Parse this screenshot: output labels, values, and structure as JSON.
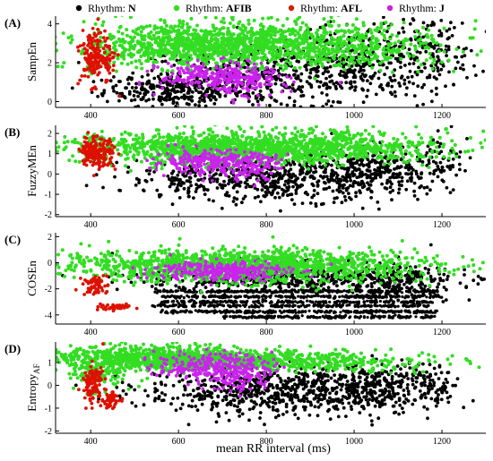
{
  "legend": [
    {
      "prefix": "Rhythm: ",
      "code": "N",
      "color": "#000000"
    },
    {
      "prefix": "Rhythm: ",
      "code": "AFIB",
      "color": "#33dd22"
    },
    {
      "prefix": "Rhythm: ",
      "code": "AFL",
      "color": "#cc2200"
    },
    {
      "prefix": "Rhythm: ",
      "code": "J",
      "color": "#cc22dd"
    }
  ],
  "xlabel": "mean RR interval (ms)",
  "colors": {
    "N": "#000000",
    "AFIB": "#33dd22",
    "AFL": "#dd1100",
    "J": "#cc22ee",
    "cyan_fringe": "#66ffee"
  },
  "chart_data": [
    {
      "type": "scatter",
      "tag": "(A)",
      "ylabel": "SampEn",
      "xlim": [
        320,
        1300
      ],
      "ylim": [
        -0.3,
        4.4
      ],
      "xticks": [
        400,
        600,
        800,
        1000,
        1200
      ],
      "yticks": [
        0,
        2,
        4
      ],
      "series": [
        {
          "name": "N",
          "clusters": [
            {
              "cx": 590,
              "cy": 0.6,
              "sx": 80,
              "sy": 0.4,
              "n": 260
            },
            {
              "cx": 800,
              "cy": 1.2,
              "sx": 150,
              "sy": 0.8,
              "n": 420
            },
            {
              "cx": 1000,
              "cy": 2.2,
              "sx": 80,
              "sy": 1.0,
              "n": 260
            },
            {
              "cx": 1170,
              "cy": 2.4,
              "sx": 50,
              "sy": 1.0,
              "n": 120
            },
            {
              "cx": 1240,
              "cy": 2.3,
              "sx": 30,
              "sy": 0.9,
              "n": 18
            }
          ]
        },
        {
          "name": "AFIB",
          "clusters": [
            {
              "cx": 640,
              "cy": 2.9,
              "sx": 150,
              "sy": 0.55,
              "n": 900
            },
            {
              "cx": 900,
              "cy": 2.9,
              "sx": 160,
              "sy": 0.6,
              "n": 700
            }
          ]
        },
        {
          "name": "AFL",
          "clusters": [
            {
              "cx": 405,
              "cy": 2.3,
              "sx": 14,
              "sy": 0.7,
              "n": 140
            },
            {
              "cx": 440,
              "cy": 2.1,
              "sx": 10,
              "sy": 0.6,
              "n": 40
            }
          ]
        },
        {
          "name": "J",
          "clusters": [
            {
              "cx": 690,
              "cy": 1.3,
              "sx": 65,
              "sy": 0.35,
              "n": 260
            },
            {
              "cx": 760,
              "cy": 0.8,
              "sx": 40,
              "sy": 0.4,
              "n": 60
            }
          ]
        }
      ]
    },
    {
      "type": "scatter",
      "tag": "(B)",
      "ylabel": "FuzzyMEn",
      "xlim": [
        320,
        1300
      ],
      "ylim": [
        -2.1,
        2.4
      ],
      "xticks": [
        400,
        600,
        800,
        1000,
        1200
      ],
      "yticks": [
        -2,
        -1,
        0,
        1,
        2
      ],
      "series": [
        {
          "name": "N",
          "clusters": [
            {
              "cx": 800,
              "cy": -0.2,
              "sx": 160,
              "sy": 0.55,
              "n": 600
            },
            {
              "cx": 1050,
              "cy": 0.3,
              "sx": 90,
              "sy": 0.6,
              "n": 260
            },
            {
              "cx": 1210,
              "cy": 0.7,
              "sx": 35,
              "sy": 0.6,
              "n": 40
            }
          ]
        },
        {
          "name": "AFIB",
          "clusters": [
            {
              "cx": 660,
              "cy": 1.3,
              "sx": 160,
              "sy": 0.38,
              "n": 900
            },
            {
              "cx": 920,
              "cy": 1.3,
              "sx": 150,
              "sy": 0.38,
              "n": 650
            }
          ]
        },
        {
          "name": "AFL",
          "clusters": [
            {
              "cx": 405,
              "cy": 1.1,
              "sx": 13,
              "sy": 0.4,
              "n": 140
            },
            {
              "cx": 440,
              "cy": 1.1,
              "sx": 10,
              "sy": 0.4,
              "n": 40
            }
          ]
        },
        {
          "name": "J",
          "clusters": [
            {
              "cx": 680,
              "cy": 0.6,
              "sx": 70,
              "sy": 0.28,
              "n": 280
            },
            {
              "cx": 760,
              "cy": 0.2,
              "sx": 35,
              "sy": 0.3,
              "n": 50
            }
          ]
        }
      ]
    },
    {
      "type": "scatter",
      "tag": "(C)",
      "ylabel": "COSEn",
      "xlim": [
        320,
        1300
      ],
      "ylim": [
        -4.7,
        2.3
      ],
      "xticks": [
        400,
        600,
        800,
        1000,
        1200
      ],
      "yticks": [
        -4,
        -2,
        0,
        2
      ],
      "series": [
        {
          "name": "N",
          "clusters": [
            {
              "cx": 850,
              "cy": -1.2,
              "sx": 170,
              "sy": 0.6,
              "n": 500
            },
            {
              "cx": 1100,
              "cy": -1.5,
              "sx": 70,
              "sy": 0.6,
              "n": 150
            }
          ],
          "bands": [
            {
              "x0": 540,
              "x1": 1190,
              "y": -2.2,
              "n": 260
            },
            {
              "x0": 560,
              "x1": 1200,
              "y": -2.6,
              "n": 260
            },
            {
              "x0": 560,
              "x1": 1180,
              "y": -3.0,
              "n": 240
            },
            {
              "x0": 540,
              "x1": 1170,
              "y": -3.3,
              "n": 240
            },
            {
              "x0": 560,
              "x1": 1190,
              "y": -3.75,
              "n": 280
            },
            {
              "x0": 700,
              "x1": 1190,
              "y": -4.15,
              "n": 200
            }
          ]
        },
        {
          "name": "AFIB",
          "clusters": [
            {
              "cx": 640,
              "cy": -0.2,
              "sx": 160,
              "sy": 0.6,
              "n": 850
            },
            {
              "cx": 900,
              "cy": -0.3,
              "sx": 150,
              "sy": 0.6,
              "n": 600
            }
          ]
        },
        {
          "name": "AFL",
          "clusters": [
            {
              "cx": 410,
              "cy": -1.7,
              "sx": 14,
              "sy": 0.4,
              "n": 60
            },
            {
              "cx": 450,
              "cy": -3.4,
              "sx": 25,
              "sy": 0.1,
              "n": 40
            }
          ]
        },
        {
          "name": "J",
          "clusters": [
            {
              "cx": 700,
              "cy": -0.6,
              "sx": 75,
              "sy": 0.4,
              "n": 280
            }
          ]
        }
      ]
    },
    {
      "type": "scatter",
      "tag": "(D)",
      "ylabel": "Entropy",
      "ylabel_sub": "AF",
      "xlim": [
        320,
        1300
      ],
      "ylim": [
        -2.1,
        1.9
      ],
      "xticks": [
        400,
        600,
        800,
        1000,
        1200
      ],
      "yticks": [
        -2,
        -1,
        0,
        1
      ],
      "series": [
        {
          "name": "N",
          "clusters": [
            {
              "cx": 820,
              "cy": -0.2,
              "sx": 150,
              "sy": 0.55,
              "n": 700
            },
            {
              "cx": 1060,
              "cy": -0.1,
              "sx": 80,
              "sy": 0.5,
              "n": 260
            },
            {
              "cx": 1180,
              "cy": 0.0,
              "sx": 30,
              "sy": 0.5,
              "n": 40
            }
          ]
        },
        {
          "name": "AFIB",
          "clusters": [
            {
              "cx": 550,
              "cy": 1.2,
              "sx": 140,
              "sy": 0.25,
              "n": 850
            },
            {
              "cx": 850,
              "cy": 1.05,
              "sx": 160,
              "sy": 0.22,
              "n": 500
            },
            {
              "cx": 420,
              "cy": 0.6,
              "sx": 40,
              "sy": 0.4,
              "n": 120
            }
          ]
        },
        {
          "name": "AFL",
          "clusters": [
            {
              "cx": 405,
              "cy": 0.1,
              "sx": 12,
              "sy": 0.4,
              "n": 110
            },
            {
              "cx": 445,
              "cy": -0.65,
              "sx": 10,
              "sy": 0.18,
              "n": 60
            }
          ]
        },
        {
          "name": "J",
          "clusters": [
            {
              "cx": 680,
              "cy": 0.8,
              "sx": 65,
              "sy": 0.3,
              "n": 260
            },
            {
              "cx": 740,
              "cy": 0.3,
              "sx": 40,
              "sy": 0.35,
              "n": 70
            }
          ]
        }
      ]
    }
  ]
}
